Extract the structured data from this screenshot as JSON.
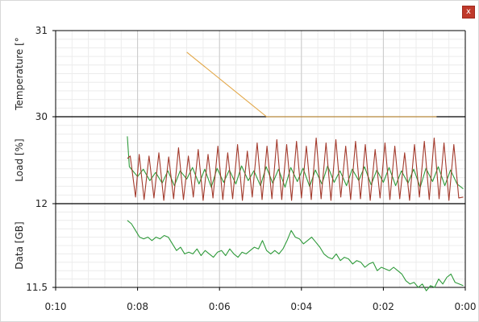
{
  "window": {
    "close_label": "x"
  },
  "colors": {
    "temperature": "#e3a84a",
    "load_a": "#2e9a3a",
    "load_b": "#a33a2c",
    "data": "#2e9a3a",
    "grid_major": "#c9c9c9",
    "grid_minor": "#ececec",
    "frame": "#000000"
  },
  "chart_data": [
    {
      "type": "line",
      "ylabel": "Temperature [°",
      "ylim": [
        30,
        31
      ],
      "yticks": [
        {
          "value": 30,
          "label": "30"
        },
        {
          "value": 31,
          "label": "31"
        }
      ],
      "xlim": [
        10,
        0
      ],
      "series": [
        {
          "color": "temperature",
          "x": [
            6.8,
            4.85,
            0.7
          ],
          "y": [
            30.75,
            30.0,
            30.0
          ]
        }
      ]
    },
    {
      "type": "line",
      "ylabel": "Load [%]",
      "yticks": [],
      "xlim": [
        10,
        0
      ],
      "series": [
        {
          "color": "load_a",
          "x": [
            8.25,
            8.2,
            8.0,
            7.86,
            7.7,
            7.56,
            7.4,
            7.26,
            7.1,
            6.96,
            6.8,
            6.66,
            6.5,
            6.36,
            6.2,
            6.06,
            5.9,
            5.76,
            5.6,
            5.46,
            5.3,
            5.16,
            5.0,
            4.86,
            4.7,
            4.56,
            4.4,
            4.26,
            4.1,
            3.96,
            3.8,
            3.66,
            3.5,
            3.36,
            3.2,
            3.06,
            2.9,
            2.76,
            2.6,
            2.46,
            2.3,
            2.16,
            2.0,
            1.86,
            1.7,
            1.56,
            1.4,
            1.26,
            1.1,
            0.96,
            0.8,
            0.66,
            0.5,
            0.36,
            0.2,
            0.05
          ],
          "y": [
            0.82,
            0.45,
            0.33,
            0.42,
            0.28,
            0.38,
            0.25,
            0.4,
            0.22,
            0.4,
            0.3,
            0.44,
            0.24,
            0.42,
            0.2,
            0.43,
            0.26,
            0.41,
            0.24,
            0.46,
            0.28,
            0.4,
            0.22,
            0.45,
            0.25,
            0.42,
            0.2,
            0.44,
            0.27,
            0.43,
            0.21,
            0.41,
            0.24,
            0.46,
            0.26,
            0.4,
            0.22,
            0.42,
            0.28,
            0.45,
            0.23,
            0.41,
            0.26,
            0.44,
            0.22,
            0.4,
            0.25,
            0.42,
            0.2,
            0.43,
            0.27,
            0.45,
            0.22,
            0.41,
            0.24,
            0.18
          ]
        },
        {
          "color": "load_b",
          "x": [
            8.25,
            8.18,
            8.05,
            7.96,
            7.84,
            7.72,
            7.6,
            7.48,
            7.36,
            7.24,
            7.12,
            7.0,
            6.88,
            6.76,
            6.64,
            6.52,
            6.4,
            6.28,
            6.16,
            6.04,
            5.92,
            5.8,
            5.68,
            5.56,
            5.44,
            5.32,
            5.2,
            5.08,
            4.96,
            4.84,
            4.72,
            4.6,
            4.48,
            4.36,
            4.24,
            4.12,
            4.0,
            3.88,
            3.76,
            3.64,
            3.52,
            3.4,
            3.28,
            3.16,
            3.04,
            2.92,
            2.8,
            2.68,
            2.56,
            2.44,
            2.32,
            2.2,
            2.08,
            1.96,
            1.84,
            1.72,
            1.6,
            1.48,
            1.36,
            1.24,
            1.12,
            1.0,
            0.88,
            0.76,
            0.64,
            0.52,
            0.4,
            0.28,
            0.16,
            0.05
          ],
          "y": [
            0.55,
            0.58,
            0.08,
            0.6,
            0.05,
            0.58,
            0.07,
            0.62,
            0.04,
            0.57,
            0.06,
            0.68,
            0.05,
            0.58,
            0.08,
            0.66,
            0.04,
            0.6,
            0.07,
            0.7,
            0.05,
            0.62,
            0.06,
            0.72,
            0.04,
            0.64,
            0.08,
            0.74,
            0.05,
            0.7,
            0.06,
            0.78,
            0.05,
            0.72,
            0.04,
            0.76,
            0.07,
            0.7,
            0.05,
            0.8,
            0.06,
            0.74,
            0.04,
            0.78,
            0.08,
            0.7,
            0.05,
            0.76,
            0.06,
            0.72,
            0.04,
            0.66,
            0.07,
            0.74,
            0.05,
            0.7,
            0.06,
            0.62,
            0.04,
            0.72,
            0.08,
            0.76,
            0.05,
            0.8,
            0.06,
            0.74,
            0.04,
            0.72,
            0.07,
            0.08
          ]
        }
      ]
    },
    {
      "type": "line",
      "ylabel": "Data [GB]",
      "ylim": [
        11.5,
        12
      ],
      "yticks": [
        {
          "value": 11.5,
          "label": "11.5"
        },
        {
          "value": 12,
          "label": "12"
        }
      ],
      "xlim": [
        10,
        0
      ],
      "xticks": [
        {
          "value": 10,
          "label": "0:10"
        },
        {
          "value": 8,
          "label": "0:08"
        },
        {
          "value": 6,
          "label": "0:06"
        },
        {
          "value": 4,
          "label": "0:04"
        },
        {
          "value": 2,
          "label": "0:02"
        },
        {
          "value": 0,
          "label": "0:00"
        }
      ],
      "series": [
        {
          "color": "data",
          "x": [
            8.25,
            8.15,
            8.05,
            7.95,
            7.85,
            7.75,
            7.65,
            7.55,
            7.45,
            7.35,
            7.25,
            7.15,
            7.05,
            6.95,
            6.85,
            6.75,
            6.65,
            6.55,
            6.45,
            6.35,
            6.25,
            6.15,
            6.05,
            5.95,
            5.85,
            5.75,
            5.65,
            5.55,
            5.45,
            5.35,
            5.25,
            5.15,
            5.05,
            4.95,
            4.85,
            4.75,
            4.65,
            4.55,
            4.45,
            4.35,
            4.25,
            4.15,
            4.05,
            3.95,
            3.85,
            3.75,
            3.65,
            3.55,
            3.45,
            3.35,
            3.25,
            3.15,
            3.05,
            2.95,
            2.85,
            2.75,
            2.65,
            2.55,
            2.45,
            2.35,
            2.25,
            2.15,
            2.05,
            1.95,
            1.85,
            1.75,
            1.65,
            1.55,
            1.45,
            1.35,
            1.25,
            1.15,
            1.05,
            0.95,
            0.85,
            0.75,
            0.65,
            0.55,
            0.45,
            0.35,
            0.25,
            0.15,
            0.05
          ],
          "y": [
            11.9,
            11.88,
            11.84,
            11.8,
            11.79,
            11.8,
            11.78,
            11.8,
            11.79,
            11.81,
            11.8,
            11.76,
            11.72,
            11.74,
            11.7,
            11.71,
            11.7,
            11.73,
            11.69,
            11.72,
            11.7,
            11.68,
            11.71,
            11.72,
            11.69,
            11.73,
            11.7,
            11.68,
            11.71,
            11.7,
            11.72,
            11.74,
            11.73,
            11.78,
            11.72,
            11.7,
            11.72,
            11.7,
            11.73,
            11.78,
            11.84,
            11.8,
            11.79,
            11.76,
            11.78,
            11.8,
            11.77,
            11.74,
            11.7,
            11.68,
            11.67,
            11.7,
            11.66,
            11.68,
            11.67,
            11.64,
            11.66,
            11.65,
            11.62,
            11.64,
            11.65,
            11.6,
            11.62,
            11.61,
            11.6,
            11.62,
            11.6,
            11.58,
            11.54,
            11.52,
            11.53,
            11.5,
            11.52,
            11.48,
            11.51,
            11.5,
            11.55,
            11.52,
            11.56,
            11.58,
            11.53,
            11.52,
            11.51
          ]
        }
      ]
    }
  ]
}
